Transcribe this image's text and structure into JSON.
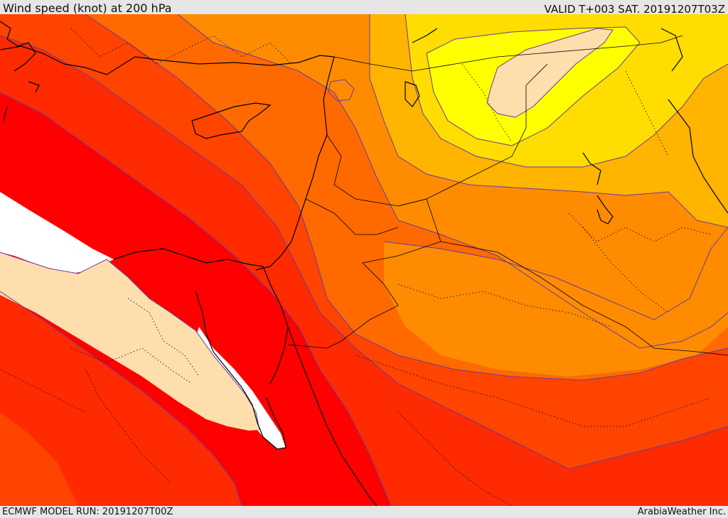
{
  "header": {
    "title": "Wind speed (knot) at 200 hPa",
    "valid": "VALID T+003 SAT. 20191207T03Z"
  },
  "footer": {
    "model_run": "ECMWF MODEL RUN: 20191207T00Z",
    "credit": "ArabiaWeather Inc."
  },
  "map": {
    "field": "wind-speed-200hpa",
    "palette": {
      "calm_white": "#ffffff",
      "pale": "#ffdead",
      "yellow": "#ffff00",
      "gold": "#ffdd00",
      "amber": "#ffb400",
      "orange": "#ff8c00",
      "dark_orange": "#ff6a00",
      "red_orange": "#ff4400",
      "scarlet": "#ff2a00",
      "red": "#ff0000"
    },
    "contour_color": "#6a3aa0",
    "coastline_color": "#000000"
  }
}
